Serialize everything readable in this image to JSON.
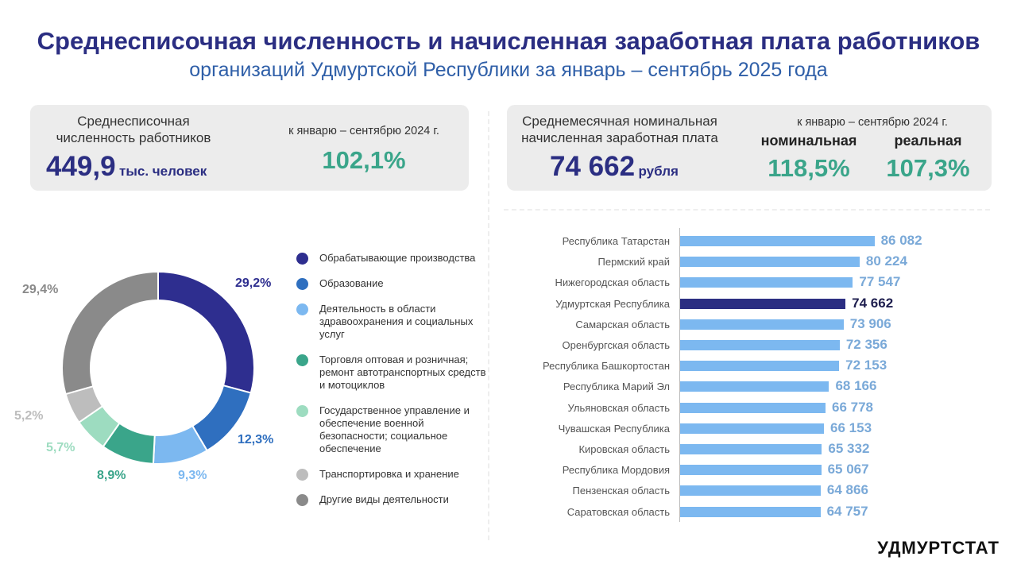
{
  "header": {
    "title": "Среднесписочная численность и начисленная заработная плата работников",
    "subtitle": "организаций Удмуртской Республики за январь – сентябрь 2025 года"
  },
  "employment_card": {
    "label_line1": "Среднесписочная",
    "label_line2": "численность работников",
    "value": "449,9",
    "unit": "тыс. человек",
    "compare_label": "к январю – сентябрю 2024 г.",
    "compare_value": "102,1%"
  },
  "wage_card": {
    "label_line1": "Среднемесячная номинальная",
    "label_line2": "начисленная заработная плата",
    "value": "74 662",
    "unit": "рубля",
    "compare_label": "к январю – сентябрю 2024 г.",
    "nominal_label": "номинальная",
    "nominal_value": "118,5%",
    "real_label": "реальная",
    "real_value": "107,3%"
  },
  "logo": "УДМУРТСТАТ",
  "colors": {
    "title": "#2b2e82",
    "accent_green": "#3aa58a",
    "bar": "#7cb8f0",
    "highlight_bar": "#2b2e82"
  },
  "chart_data": [
    {
      "type": "pie",
      "donut": true,
      "values": [
        29.2,
        12.3,
        9.3,
        8.9,
        5.7,
        5.2,
        29.4
      ],
      "labels": [
        "29,2%",
        "12,3%",
        "9,3%",
        "8,9%",
        "5,7%",
        "5,2%",
        "29,4%"
      ],
      "legend": [
        "Обрабатывающие производства",
        "Образование",
        "Деятельность в области здравоохранения и социальных услуг",
        "Торговля оптовая и розничная; ремонт автотранспортных средств и мотоциклов",
        "Государственное управление и обеспечение военной безопасности; социальное обеспечение",
        "Транспортировка и хранение",
        "Другие виды деятельности"
      ],
      "colors": [
        "#2e2e8f",
        "#2f6fbf",
        "#7cb8f0",
        "#3aa58a",
        "#9ddcc0",
        "#bdbdbd",
        "#8a8a8a"
      ],
      "legend_position": "right"
    },
    {
      "type": "bar",
      "orientation": "horizontal",
      "categories": [
        "Республика Татарстан",
        "Пермский край",
        "Нижегородская область",
        "Удмуртская Республика",
        "Самарская область",
        "Оренбургская область",
        "Республика Башкортостан",
        "Республика Марий Эл",
        "Ульяновская область",
        "Чувашская Республика",
        "Кировская область",
        "Республика Мордовия",
        "Пензенская область",
        "Саратовская область"
      ],
      "values": [
        86082,
        80224,
        77547,
        74662,
        73906,
        72356,
        72153,
        68166,
        66778,
        66153,
        65332,
        65067,
        64866,
        64757
      ],
      "labels": [
        "86 082",
        "80 224",
        "77 547",
        "74 662",
        "73 906",
        "72 356",
        "72 153",
        "68 166",
        "66 778",
        "66 153",
        "65 332",
        "65 067",
        "64 866",
        "64 757"
      ],
      "highlight": "Удмуртская Республика"
    }
  ]
}
